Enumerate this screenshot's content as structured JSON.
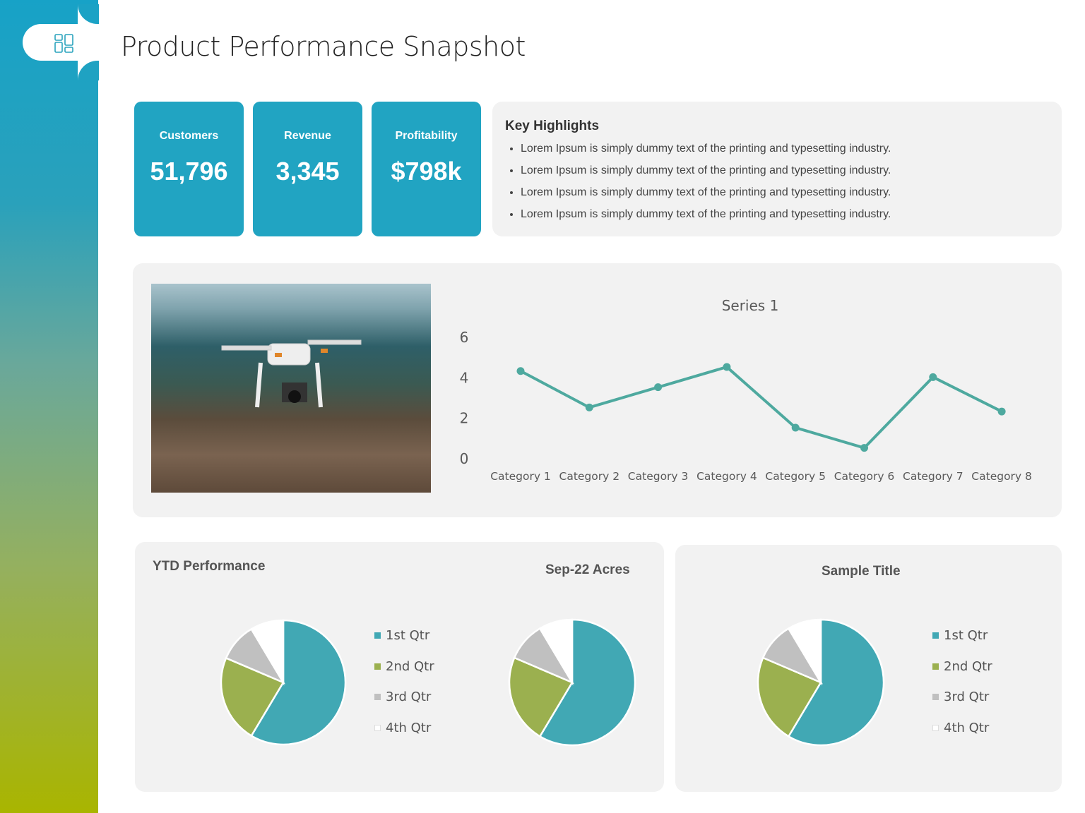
{
  "header": {
    "title": "Product Performance Snapshot",
    "icon": "dashboard-layout-icon"
  },
  "kpis": [
    {
      "label": "Customers",
      "value": "51,796"
    },
    {
      "label": "Revenue",
      "value": "3,345"
    },
    {
      "label": "Profitability",
      "value": "$798k"
    }
  ],
  "highlights": {
    "title": "Key Highlights",
    "items": [
      "Lorem Ipsum is simply dummy text of the printing and typesetting industry.",
      "Lorem Ipsum is simply dummy text of the printing and typesetting industry.",
      "Lorem Ipsum is simply dummy text of the printing and typesetting industry.",
      "Lorem Ipsum is simply dummy text of the printing and typesetting industry."
    ]
  },
  "image": {
    "subject": "drone-photo"
  },
  "colors": {
    "accent": "#21a4c2",
    "line": "#4ea99f",
    "q1": "#41a8b4",
    "q2": "#9bb04f",
    "q3": "#c0c0c0",
    "q4": "#ffffff"
  },
  "panels": {
    "ytd_title": "YTD Performance",
    "sample_title": "Sample Title"
  },
  "chart_data": [
    {
      "type": "line",
      "title": "Series 1",
      "categories": [
        "Category 1",
        "Category 2",
        "Category 3",
        "Category 4",
        "Category 5",
        "Category 6",
        "Category 7",
        "Category 8"
      ],
      "series": [
        {
          "name": "Series 1",
          "values": [
            4.3,
            2.5,
            3.5,
            4.5,
            1.5,
            0.5,
            4.0,
            2.3
          ]
        }
      ],
      "ylim": [
        0,
        6
      ],
      "yticks": [
        0,
        2,
        4,
        6
      ],
      "grid": false
    },
    {
      "type": "pie",
      "title": "",
      "categories": [
        "1st Qtr",
        "2nd Qtr",
        "3rd Qtr",
        "4th Qtr"
      ],
      "values": [
        8.2,
        3.2,
        1.4,
        1.2
      ],
      "legend": "right"
    },
    {
      "type": "pie",
      "title": "Sep-22 Acres",
      "categories": [
        "1st Qtr",
        "2nd Qtr",
        "3rd Qtr",
        "4th Qtr"
      ],
      "values": [
        8.2,
        3.2,
        1.4,
        1.2
      ],
      "legend": "none"
    },
    {
      "type": "pie",
      "title": "",
      "categories": [
        "1st Qtr",
        "2nd Qtr",
        "3rd Qtr",
        "4th Qtr"
      ],
      "values": [
        8.2,
        3.2,
        1.4,
        1.2
      ],
      "legend": "right"
    }
  ]
}
